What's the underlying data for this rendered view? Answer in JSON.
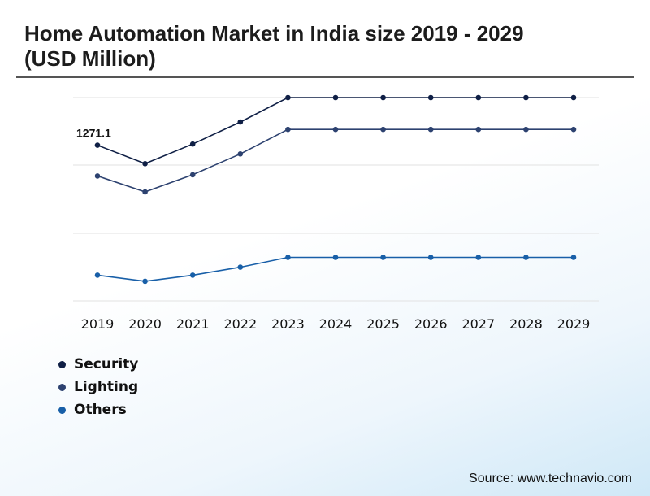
{
  "title": "Home Automation Market in India size 2019 - 2029 (USD Million)",
  "source": "Source: www.technavio.com",
  "chart_data": {
    "type": "line",
    "title": "Home Automation Market in India size 2019 - 2029 (USD Million)",
    "xlabel": "",
    "ylabel": "",
    "categories": [
      "2019",
      "2020",
      "2021",
      "2022",
      "2023",
      "2024",
      "2025",
      "2026",
      "2027",
      "2028",
      "2029"
    ],
    "grid": true,
    "legend_position": "bottom-left",
    "annotations": [
      {
        "series": "Security",
        "category": "2019",
        "text": "1271.1"
      }
    ],
    "ylim": [
      0,
      1900
    ],
    "series": [
      {
        "name": "Security",
        "color": "#0f1f45",
        "values": [
          1271.1,
          1120,
          1280,
          1460,
          1660,
          1660,
          1660,
          1660,
          1660,
          1660,
          1660
        ]
      },
      {
        "name": "Lighting",
        "color": "#2d4270",
        "values": [
          1020,
          890,
          1030,
          1200,
          1400,
          1400,
          1400,
          1400,
          1400,
          1400,
          1400
        ]
      },
      {
        "name": "Others",
        "color": "#185fa8",
        "values": [
          210,
          160,
          210,
          275,
          355,
          355,
          355,
          355,
          355,
          355,
          355
        ]
      }
    ]
  }
}
